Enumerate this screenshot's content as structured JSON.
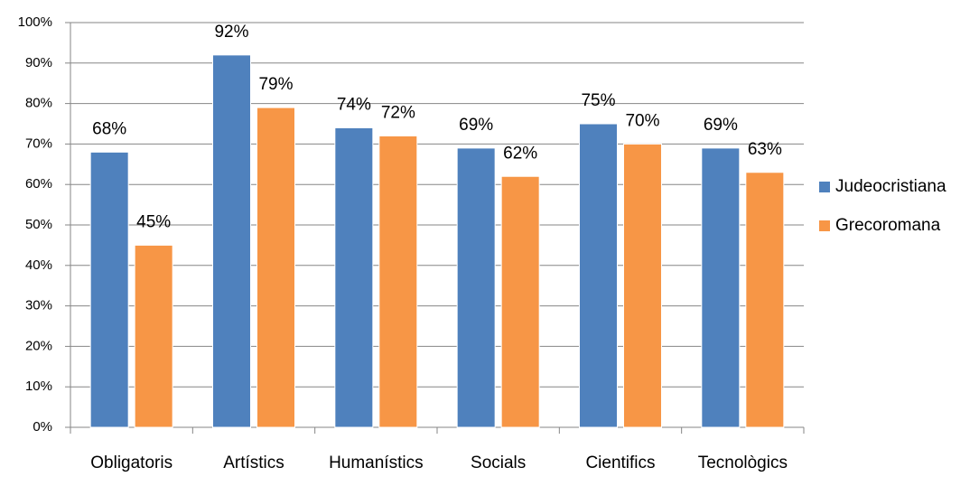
{
  "chart_data": {
    "type": "bar",
    "categories": [
      "Obligatoris",
      "Artístics",
      "Humanístics",
      "Socials",
      "Cientifics",
      "Tecnològics"
    ],
    "series": [
      {
        "name": "Judeocristiana",
        "color": "#4f81bd",
        "values": [
          68,
          92,
          74,
          69,
          75,
          69
        ],
        "value_labels": [
          "68%",
          "92%",
          "74%",
          "69%",
          "75%",
          "69%"
        ]
      },
      {
        "name": "Grecoromana",
        "color": "#f79646",
        "values": [
          45,
          79,
          72,
          62,
          70,
          63
        ],
        "value_labels": [
          "45%",
          "79%",
          "72%",
          "62%",
          "70%",
          "63%"
        ]
      }
    ],
    "ylim": [
      0,
      100
    ],
    "yticks": [
      {
        "value": 0,
        "label": "0%"
      },
      {
        "value": 10,
        "label": "10%"
      },
      {
        "value": 20,
        "label": "20%"
      },
      {
        "value": 30,
        "label": "30%"
      },
      {
        "value": 40,
        "label": "40%"
      },
      {
        "value": 50,
        "label": "50%"
      },
      {
        "value": 60,
        "label": "60%"
      },
      {
        "value": 70,
        "label": "70%"
      },
      {
        "value": 80,
        "label": "80%"
      },
      {
        "value": 90,
        "label": "90%"
      },
      {
        "value": 100,
        "label": "100%"
      }
    ],
    "grid": true,
    "legend": "right"
  }
}
